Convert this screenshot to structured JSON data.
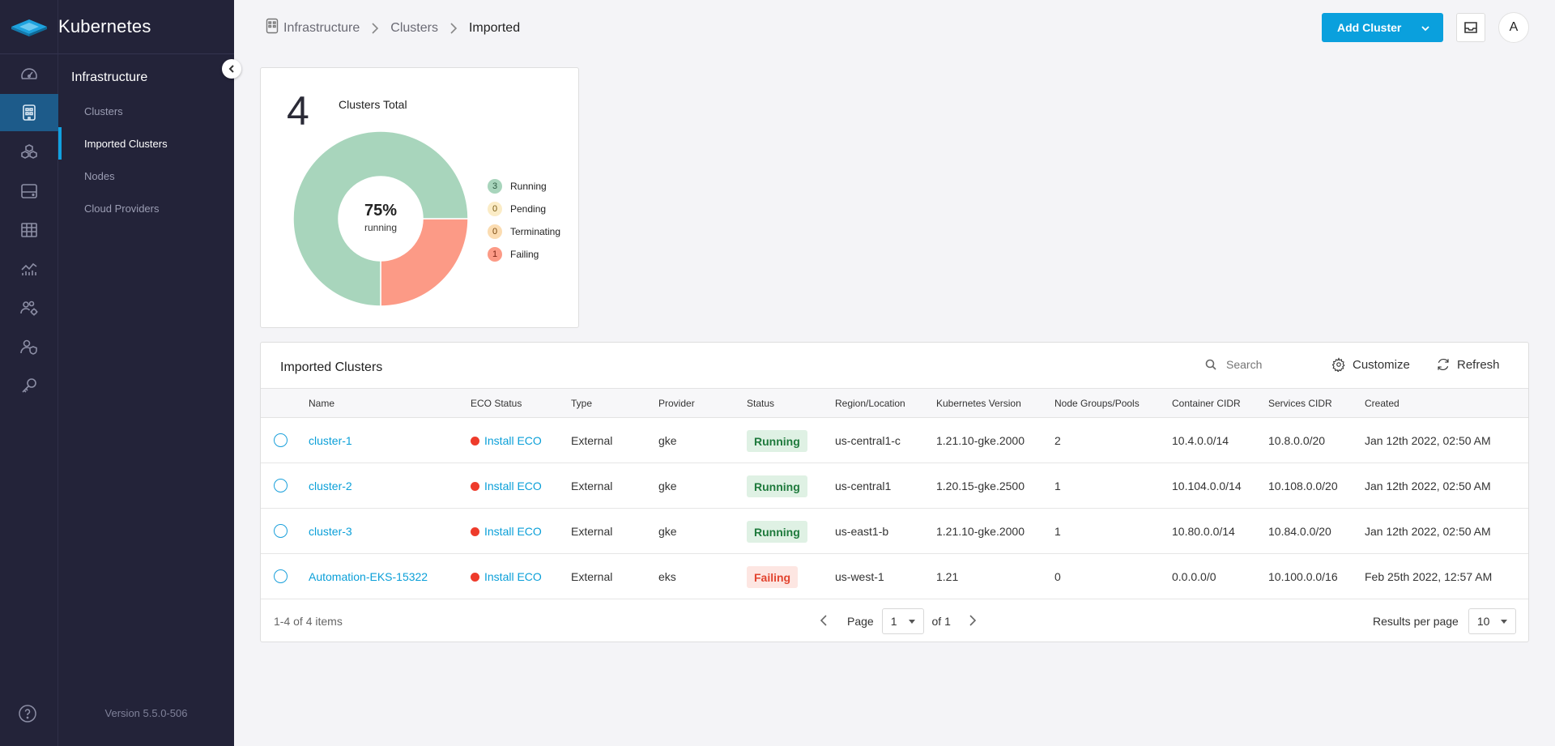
{
  "brand": {
    "title": "Kubernetes",
    "version": "Version 5.5.0-506"
  },
  "subnav": {
    "heading": "Infrastructure",
    "items": [
      {
        "label": "Clusters",
        "active": false
      },
      {
        "label": "Imported Clusters",
        "active": true
      },
      {
        "label": "Nodes",
        "active": false
      },
      {
        "label": "Cloud Providers",
        "active": false
      }
    ]
  },
  "rail_icons": [
    "dashboard-icon",
    "infrastructure-icon",
    "apps-icon",
    "storage-icon",
    "table-icon",
    "metrics-icon",
    "users-settings-icon",
    "user-shield-icon",
    "key-icon"
  ],
  "breadcrumb": {
    "items": [
      "Infrastructure",
      "Clusters"
    ],
    "current": "Imported"
  },
  "header": {
    "add_cluster_label": "Add Cluster",
    "avatar_initial": "A"
  },
  "summary": {
    "total": "4",
    "total_label": "Clusters Total",
    "percent": "75%",
    "percent_label": "running",
    "legend": [
      {
        "count": "3",
        "label": "Running",
        "bg": "#a8d5bc",
        "fg": "#2d5b42"
      },
      {
        "count": "0",
        "label": "Pending",
        "bg": "#fbecc6",
        "fg": "#7a5c14"
      },
      {
        "count": "0",
        "label": "Terminating",
        "bg": "#fbdcb1",
        "fg": "#7a4a10"
      },
      {
        "count": "1",
        "label": "Failing",
        "bg": "#fc9a86",
        "fg": "#7c2415"
      }
    ]
  },
  "chart_data": {
    "type": "pie",
    "categories": [
      "Running",
      "Pending",
      "Terminating",
      "Failing"
    ],
    "values": [
      3,
      0,
      0,
      1
    ],
    "colors": [
      "#a8d5bc",
      "#fbecc6",
      "#fbdcb1",
      "#fc9a86"
    ],
    "title": "Clusters Total"
  },
  "table": {
    "title": "Imported Clusters",
    "search_placeholder": "Search",
    "customize_label": "Customize",
    "refresh_label": "Refresh",
    "columns": [
      "Name",
      "ECO Status",
      "Type",
      "Provider",
      "Status",
      "Region/Location",
      "Kubernetes Version",
      "Node Groups/Pools",
      "Container CIDR",
      "Services CIDR",
      "Created"
    ],
    "rows": [
      {
        "name": "cluster-1",
        "eco": "Install ECO",
        "type": "External",
        "provider": "gke",
        "status": "Running",
        "region": "us-central1-c",
        "version": "1.21.10-gke.2000",
        "nodes": "2",
        "container_cidr": "10.4.0.0/14",
        "services_cidr": "10.8.0.0/20",
        "created": "Jan 12th 2022, 02:50 AM"
      },
      {
        "name": "cluster-2",
        "eco": "Install ECO",
        "type": "External",
        "provider": "gke",
        "status": "Running",
        "region": "us-central1",
        "version": "1.20.15-gke.2500",
        "nodes": "1",
        "container_cidr": "10.104.0.0/14",
        "services_cidr": "10.108.0.0/20",
        "created": "Jan 12th 2022, 02:50 AM"
      },
      {
        "name": "cluster-3",
        "eco": "Install ECO",
        "type": "External",
        "provider": "gke",
        "status": "Running",
        "region": "us-east1-b",
        "version": "1.21.10-gke.2000",
        "nodes": "1",
        "container_cidr": "10.80.0.0/14",
        "services_cidr": "10.84.0.0/20",
        "created": "Jan 12th 2022, 02:50 AM"
      },
      {
        "name": "Automation-EKS-15322",
        "eco": "Install ECO",
        "type": "External",
        "provider": "eks",
        "status": "Failing",
        "region": "us-west-1",
        "version": "1.21",
        "nodes": "0",
        "container_cidr": "0.0.0.0/0",
        "services_cidr": "10.100.0.0/16",
        "created": "Feb 25th 2022, 12:57 AM"
      }
    ],
    "footer": {
      "count_text": "1-4 of 4 items",
      "page_label": "Page",
      "page_value": "1",
      "of_text": "of 1",
      "rpp_label": "Results per page",
      "rpp_value": "10"
    }
  }
}
